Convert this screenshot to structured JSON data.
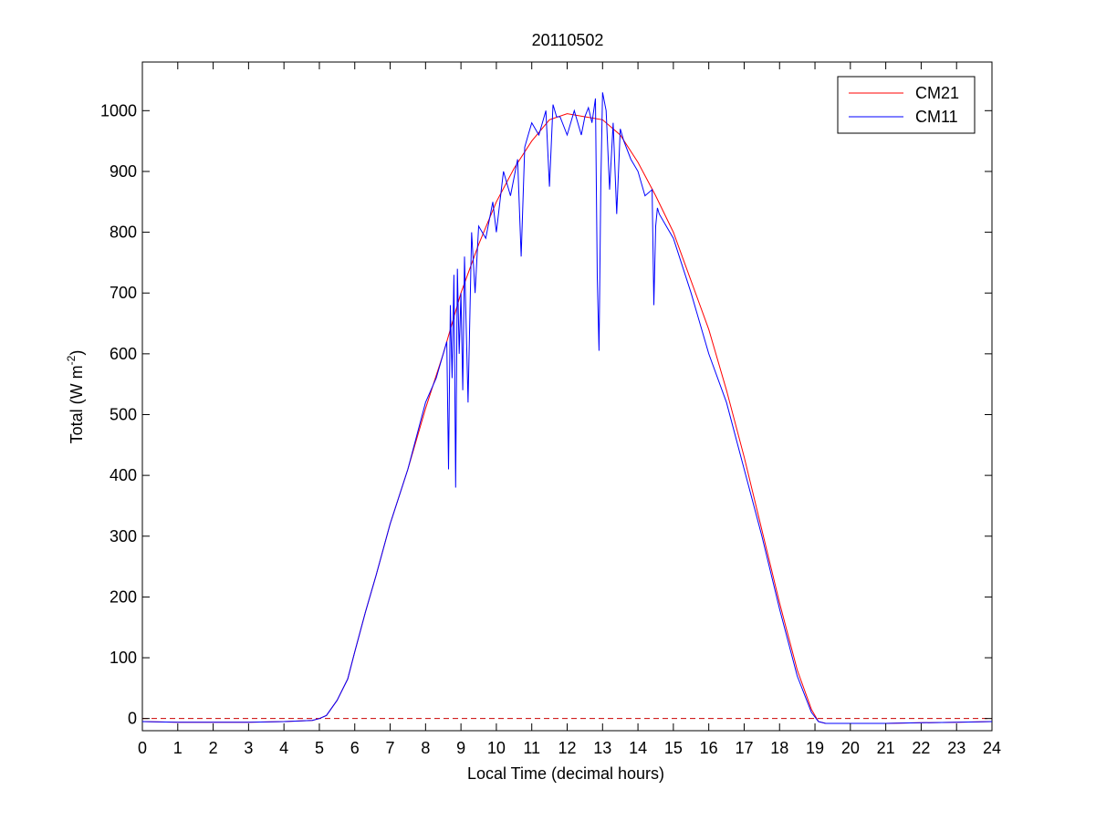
{
  "chart_data": {
    "type": "line",
    "title": "20110502",
    "xlabel": "Local Time (decimal hours)",
    "ylabel_main": "Total (W m",
    "ylabel_sup": "-2",
    "ylabel_close": ")",
    "xlim": [
      0,
      24
    ],
    "ylim": [
      -20,
      1080
    ],
    "xticks": [
      0,
      1,
      2,
      3,
      4,
      5,
      6,
      7,
      8,
      9,
      10,
      11,
      12,
      13,
      14,
      15,
      16,
      17,
      18,
      19,
      20,
      21,
      22,
      23,
      24
    ],
    "yticks": [
      0,
      100,
      200,
      300,
      400,
      500,
      600,
      700,
      800,
      900,
      1000
    ],
    "grid": false,
    "legend_position": "top-right",
    "zero_reference_line": {
      "y": 0,
      "style": "dashed",
      "color": "#cc0000"
    },
    "series": [
      {
        "name": "CM21",
        "color": "#ff0000",
        "x": [
          0,
          1,
          2,
          3,
          4,
          4.8,
          5.0,
          5.2,
          5.5,
          5.8,
          6.0,
          6.3,
          6.6,
          7.0,
          7.5,
          8.0,
          8.5,
          9.0,
          9.5,
          10.0,
          10.5,
          11.0,
          11.5,
          12.0,
          12.5,
          13.0,
          13.5,
          14.0,
          14.5,
          15.0,
          15.5,
          16.0,
          16.5,
          17.0,
          17.5,
          18.0,
          18.5,
          18.9,
          19.1,
          19.3,
          20,
          21,
          22,
          23,
          24
        ],
        "y": [
          -5,
          -6,
          -6,
          -6,
          -5,
          -3,
          0,
          5,
          30,
          65,
          110,
          175,
          235,
          320,
          410,
          510,
          600,
          700,
          780,
          850,
          905,
          950,
          985,
          995,
          990,
          985,
          960,
          915,
          860,
          800,
          720,
          640,
          540,
          430,
          310,
          190,
          80,
          15,
          -5,
          -8,
          -8,
          -8,
          -7,
          -6,
          -5
        ]
      },
      {
        "name": "CM11",
        "color": "#0000ff",
        "x": [
          0,
          1,
          2,
          3,
          4,
          4.8,
          5.0,
          5.2,
          5.5,
          5.8,
          6.0,
          6.3,
          6.6,
          7.0,
          7.5,
          8.0,
          8.3,
          8.5,
          8.6,
          8.65,
          8.7,
          8.75,
          8.8,
          8.85,
          8.9,
          8.95,
          9.0,
          9.05,
          9.1,
          9.2,
          9.3,
          9.4,
          9.5,
          9.7,
          9.9,
          10.0,
          10.2,
          10.4,
          10.6,
          10.7,
          10.8,
          10.9,
          11.0,
          11.2,
          11.4,
          11.5,
          11.6,
          11.7,
          11.8,
          12.0,
          12.2,
          12.4,
          12.5,
          12.6,
          12.7,
          12.8,
          12.85,
          12.9,
          12.95,
          13.0,
          13.1,
          13.2,
          13.3,
          13.4,
          13.5,
          13.6,
          13.8,
          14.0,
          14.2,
          14.4,
          14.45,
          14.5,
          14.55,
          14.6,
          14.8,
          15.0,
          15.5,
          16.0,
          16.5,
          17.0,
          17.5,
          18.0,
          18.5,
          18.9,
          19.1,
          19.3,
          20,
          21,
          22,
          23,
          24
        ],
        "y": [
          -5,
          -6,
          -6,
          -6,
          -5,
          -3,
          0,
          5,
          30,
          65,
          110,
          175,
          235,
          320,
          410,
          520,
          560,
          600,
          620,
          410,
          680,
          560,
          730,
          380,
          740,
          600,
          700,
          540,
          760,
          520,
          800,
          700,
          810,
          790,
          850,
          800,
          900,
          860,
          920,
          760,
          940,
          960,
          980,
          960,
          1000,
          875,
          1010,
          990,
          990,
          960,
          1000,
          960,
          990,
          1005,
          980,
          1020,
          725,
          605,
          880,
          1030,
          1000,
          870,
          980,
          830,
          970,
          950,
          920,
          900,
          860,
          870,
          680,
          810,
          840,
          830,
          810,
          790,
          700,
          600,
          520,
          410,
          300,
          180,
          70,
          10,
          -5,
          -8,
          -8,
          -8,
          -7,
          -6,
          -5
        ]
      }
    ]
  }
}
